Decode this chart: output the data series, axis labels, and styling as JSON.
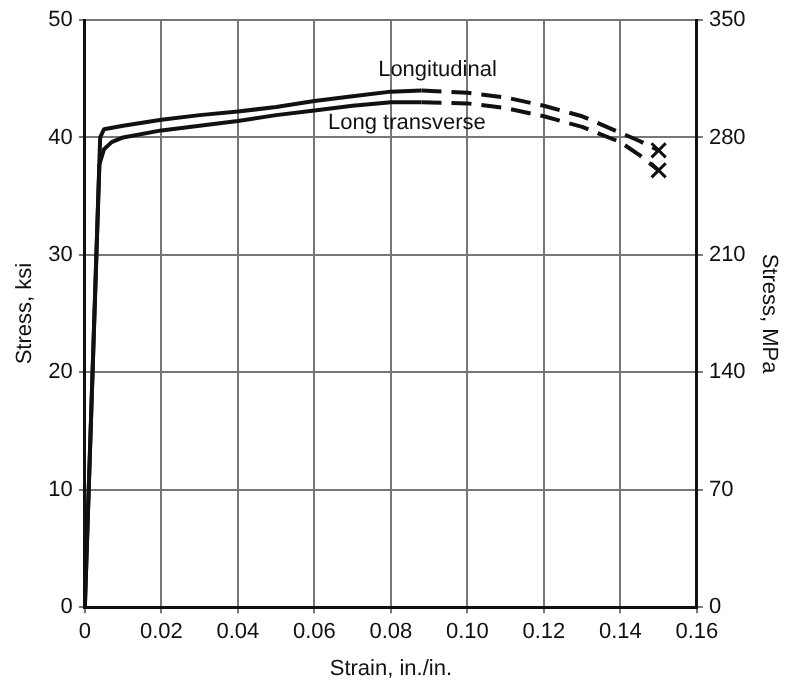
{
  "chart_data": {
    "type": "line",
    "xlabel": "Strain, in./in.",
    "ylabel": "Stress, ksi",
    "y2label": "Stress, MPa",
    "xlim": [
      0,
      0.16
    ],
    "xticks": [
      0,
      0.02,
      0.04,
      0.06,
      0.08,
      {
        "value": 0.1,
        "label": "0.10"
      },
      0.12,
      0.14,
      0.16
    ],
    "ylim": [
      0,
      50
    ],
    "yticks": [
      0,
      10,
      20,
      30,
      40,
      50
    ],
    "y2lim": [
      0,
      350
    ],
    "y2ticks": [
      0,
      70,
      140,
      210,
      280,
      350
    ],
    "grid": true,
    "legend": false,
    "marker": "none",
    "series": [
      {
        "name": "Longitudinal",
        "color": "#111111",
        "line_style": "solid",
        "x": [
          0,
          0.004,
          0.005,
          0.01,
          0.02,
          0.03,
          0.04,
          0.05,
          0.06,
          0.07,
          0.08,
          0.088
        ],
        "values": [
          0,
          40,
          40.7,
          41.0,
          41.5,
          41.9,
          42.2,
          42.6,
          43.1,
          43.5,
          43.9,
          44.0
        ]
      },
      {
        "name": "Long transverse",
        "color": "#111111",
        "line_style": "solid",
        "x": [
          0,
          0.0038,
          0.005,
          0.007,
          0.01,
          0.02,
          0.03,
          0.04,
          0.05,
          0.06,
          0.07,
          0.08,
          0.088
        ],
        "values": [
          0,
          37.7,
          39.0,
          39.6,
          40.0,
          40.6,
          41.0,
          41.4,
          41.9,
          42.3,
          42.7,
          43.0,
          43.0
        ]
      },
      {
        "color": "#111111",
        "line_style": "dashed",
        "x": [
          0.088,
          0.1,
          0.11,
          0.12,
          0.13,
          0.14,
          0.145,
          0.15
        ],
        "values": [
          44.0,
          43.8,
          43.4,
          42.7,
          41.8,
          40.4,
          39.7,
          38.9
        ]
      },
      {
        "color": "#111111",
        "line_style": "dashed",
        "x": [
          0.088,
          0.1,
          0.11,
          0.12,
          0.13,
          0.14,
          0.145,
          0.15
        ],
        "values": [
          43.0,
          42.9,
          42.5,
          41.8,
          40.9,
          39.6,
          38.5,
          37.2
        ]
      },
      {
        "type": "scatter",
        "marker": "cross",
        "color": "#111111",
        "x": [
          0.15,
          0.15
        ],
        "values": [
          38.9,
          37.2
        ]
      }
    ]
  }
}
